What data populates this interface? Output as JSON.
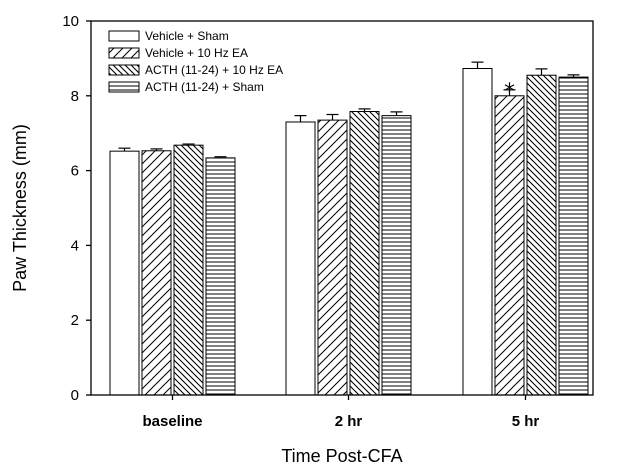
{
  "chart_data": {
    "type": "bar",
    "title": "",
    "xlabel": "Time Post-CFA",
    "ylabel": "Paw Thickness (mm)",
    "ylim": [
      0,
      10
    ],
    "yticks": [
      "0",
      "2",
      "4",
      "6",
      "8",
      "10"
    ],
    "categories": [
      "baseline",
      "2 hr",
      "5 hr"
    ],
    "legend_position": "top-left",
    "grid": false,
    "series": [
      {
        "name": "Vehicle + Sham",
        "pattern": "open",
        "values": [
          6.52,
          7.3,
          8.73
        ],
        "errors": [
          0.08,
          0.17,
          0.17
        ]
      },
      {
        "name": "Vehicle + 10 Hz EA",
        "pattern": "diagonal-up",
        "values": [
          6.53,
          7.35,
          8.0
        ],
        "errors": [
          0.05,
          0.15,
          0.16
        ]
      },
      {
        "name": "ACTH (11-24) + 10 Hz EA",
        "pattern": "diagonal-down",
        "values": [
          6.68,
          7.58,
          8.55
        ],
        "errors": [
          0.03,
          0.07,
          0.17
        ]
      },
      {
        "name": "ACTH (11-24) + Sham",
        "pattern": "horizontal",
        "values": [
          6.34,
          7.47,
          8.5
        ],
        "errors": [
          0.03,
          0.1,
          0.06
        ]
      }
    ],
    "annotations": [
      {
        "text": "*",
        "category": "5 hr",
        "series": "Vehicle + 10 Hz EA"
      }
    ]
  }
}
